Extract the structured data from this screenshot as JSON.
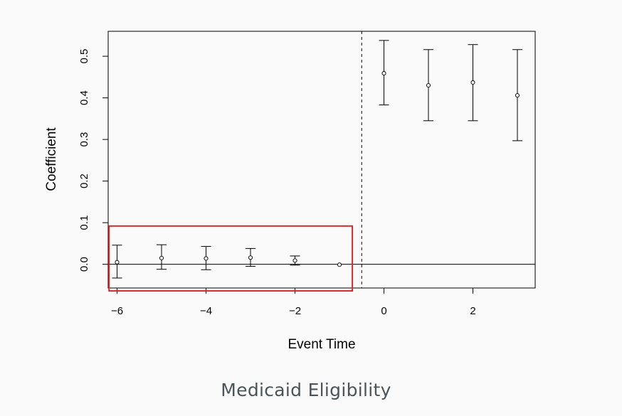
{
  "caption": "Medicaid Eligibility",
  "chart_data": {
    "type": "scatter",
    "title": "",
    "xlabel": "Event Time",
    "ylabel": "Coefficient",
    "xlim": [
      -6.2,
      3.4
    ],
    "ylim": [
      -0.057,
      0.56
    ],
    "x_ticks": [
      -6,
      -4,
      -2,
      0,
      2
    ],
    "x_tick_labels": [
      "−6",
      "−4",
      "−2",
      "0",
      "2"
    ],
    "y_ticks": [
      0.0,
      0.1,
      0.2,
      0.3,
      0.4,
      0.5
    ],
    "y_tick_labels": [
      "0.0",
      "0.1",
      "0.2",
      "0.3",
      "0.4",
      "0.5"
    ],
    "grid": false,
    "points": [
      {
        "x": -6,
        "y": 0.005,
        "lo": -0.033,
        "hi": 0.046
      },
      {
        "x": -5,
        "y": 0.015,
        "lo": -0.012,
        "hi": 0.047
      },
      {
        "x": -4,
        "y": 0.014,
        "lo": -0.013,
        "hi": 0.043
      },
      {
        "x": -3,
        "y": 0.016,
        "lo": -0.005,
        "hi": 0.038
      },
      {
        "x": -2,
        "y": 0.009,
        "lo": -0.002,
        "hi": 0.02
      },
      {
        "x": -1,
        "y": -0.001,
        "lo": null,
        "hi": null
      },
      {
        "x": 0,
        "y": 0.459,
        "lo": 0.383,
        "hi": 0.538
      },
      {
        "x": 1,
        "y": 0.43,
        "lo": 0.345,
        "hi": 0.516
      },
      {
        "x": 2,
        "y": 0.437,
        "lo": 0.345,
        "hi": 0.528
      },
      {
        "x": 3,
        "y": 0.406,
        "lo": 0.297,
        "hi": 0.516
      }
    ],
    "reference_lines": {
      "horizontal_y": 0,
      "vertical_x": -0.5,
      "vertical_style": "dashed"
    },
    "highlight_box": {
      "x_range": [
        -6.18,
        -0.71
      ],
      "y_range": [
        -0.064,
        0.092
      ],
      "color": "#d42a2a"
    }
  }
}
